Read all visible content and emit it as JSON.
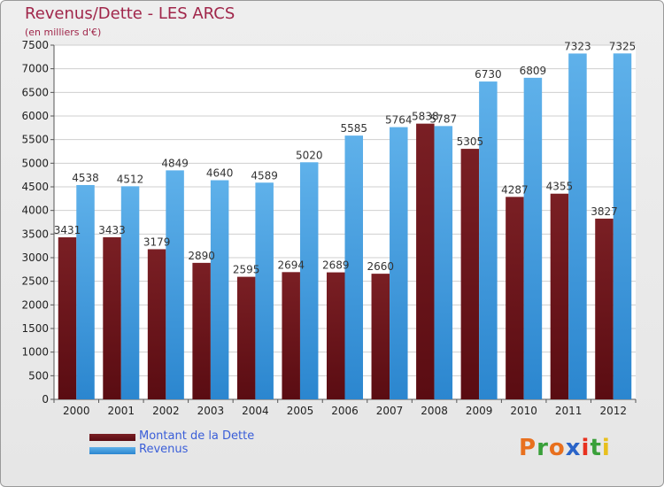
{
  "title": "Revenus/Dette - LES ARCS",
  "subtitle": "(en milliers d'€)",
  "logo_text": "Proxiti",
  "colors": {
    "dette_top": "#7a1f24",
    "dette_bottom": "#5a0c12",
    "revenus_top": "#5fb1ea",
    "revenus_bottom": "#2b86cf",
    "title": "#a0264a",
    "legend_text": "#3a5ed8",
    "background": "#e9e9e9"
  },
  "chart_data": {
    "type": "bar",
    "title": "Revenus/Dette - LES ARCS",
    "subtitle": "(en milliers d'€)",
    "categories": [
      "2000",
      "2001",
      "2002",
      "2003",
      "2004",
      "2005",
      "2006",
      "2007",
      "2008",
      "2009",
      "2010",
      "2011",
      "2012"
    ],
    "series": [
      {
        "name": "Montant de la Dette",
        "values": [
          3431,
          3433,
          3179,
          2890,
          2595,
          2694,
          2689,
          2660,
          5838,
          5305,
          4287,
          4355,
          3827
        ]
      },
      {
        "name": "Revenus",
        "values": [
          4538,
          4512,
          4849,
          4640,
          4589,
          5020,
          5585,
          5764,
          5787,
          6730,
          6809,
          7323,
          7325
        ]
      }
    ],
    "ylim": [
      0,
      7500
    ],
    "yticks": [
      0,
      500,
      1000,
      1500,
      2000,
      2500,
      3000,
      3500,
      4000,
      4500,
      5000,
      5500,
      6000,
      6500,
      7000,
      7500
    ],
    "grid": true,
    "legend_position": "bottom-left"
  }
}
